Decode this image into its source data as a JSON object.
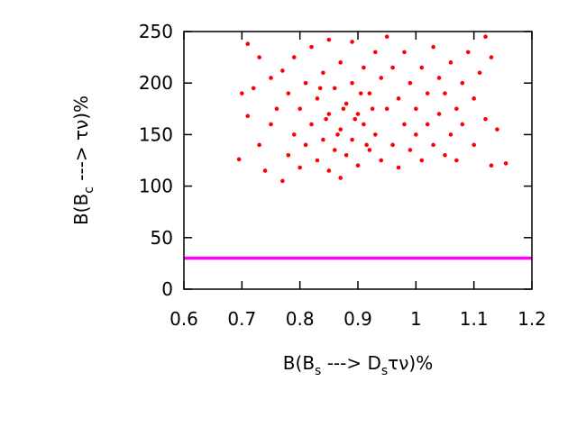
{
  "chart_data": {
    "type": "scatter",
    "xlabel": {
      "main": "B(B",
      "sub": "s",
      "mid": " ---> D",
      "sub2": "s",
      "end": "τν)%"
    },
    "ylabel": {
      "main": "B(B",
      "sub": "c",
      "end": " ---> τν)%"
    },
    "xlim": [
      0.6,
      1.2
    ],
    "xticks": [
      0.6,
      0.7,
      0.8,
      0.9,
      1,
      1.1,
      1.2
    ],
    "ylim": [
      0,
      250
    ],
    "yticks": [
      0,
      50,
      100,
      150,
      200,
      250
    ],
    "grid": false,
    "series": [
      {
        "color": "#ff0000",
        "x": [
          0.695,
          0.7,
          0.71,
          0.71,
          0.72,
          0.73,
          0.73,
          0.74,
          0.75,
          0.75,
          0.76,
          0.77,
          0.77,
          0.78,
          0.78,
          0.79,
          0.79,
          0.8,
          0.8,
          0.81,
          0.81,
          0.82,
          0.82,
          0.83,
          0.83,
          0.84,
          0.84,
          0.85,
          0.85,
          0.85,
          0.86,
          0.86,
          0.87,
          0.87,
          0.87,
          0.88,
          0.88,
          0.89,
          0.89,
          0.89,
          0.9,
          0.9,
          0.91,
          0.91,
          0.92,
          0.92,
          0.93,
          0.93,
          0.94,
          0.94,
          0.95,
          0.95,
          0.96,
          0.96,
          0.97,
          0.97,
          0.98,
          0.98,
          0.99,
          0.99,
          1.0,
          1.0,
          1.01,
          1.01,
          1.02,
          1.02,
          1.03,
          1.03,
          1.04,
          1.04,
          1.05,
          1.05,
          1.06,
          1.06,
          1.07,
          1.07,
          1.08,
          1.08,
          1.09,
          1.1,
          1.1,
          1.11,
          1.12,
          1.12,
          1.13,
          1.13,
          1.14,
          1.155,
          0.845,
          0.875,
          0.905,
          0.865,
          0.895,
          0.915,
          0.835,
          0.925
        ],
        "values": [
          126,
          190,
          238,
          168,
          195,
          225,
          140,
          115,
          205,
          160,
          175,
          212,
          105,
          190,
          130,
          150,
          225,
          175,
          118,
          200,
          140,
          235,
          160,
          185,
          125,
          210,
          145,
          242,
          170,
          115,
          195,
          135,
          220,
          155,
          108,
          180,
          130,
          240,
          200,
          145,
          170,
          120,
          215,
          160,
          190,
          135,
          230,
          150,
          205,
          125,
          245,
          175,
          140,
          215,
          185,
          118,
          160,
          230,
          200,
          135,
          175,
          150,
          215,
          125,
          190,
          160,
          140,
          235,
          205,
          170,
          130,
          190,
          220,
          150,
          175,
          125,
          200,
          160,
          230,
          140,
          185,
          210,
          245,
          165,
          225,
          120,
          155,
          122,
          165,
          175,
          190,
          150,
          165,
          140,
          195,
          175
        ]
      }
    ],
    "hline": {
      "y": 30,
      "color": "#ff00ff"
    }
  }
}
